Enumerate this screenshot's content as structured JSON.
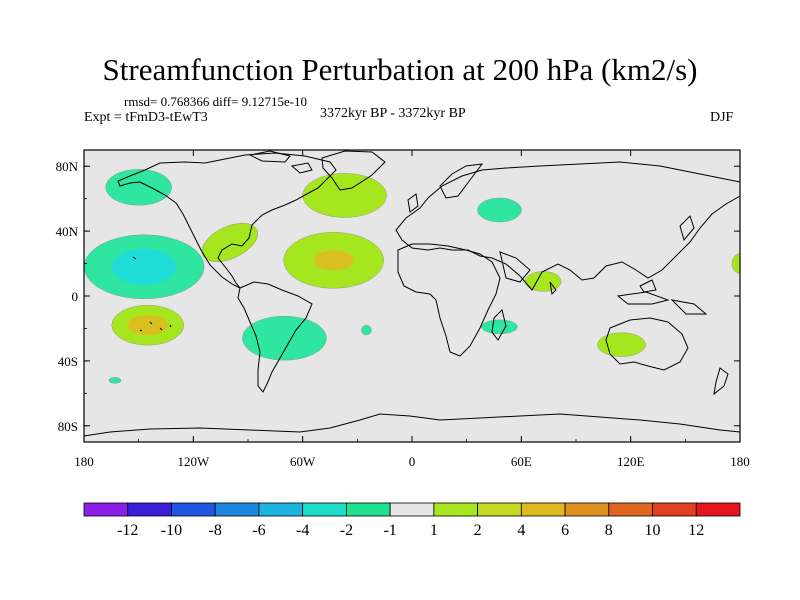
{
  "title": "Streamfunction Perturbation at 200 hPa (km2/s)",
  "stats": "rmsd= 0.768366 diff= 9.12715e-10",
  "experiment": "Expt = tFmD3-tEwT3",
  "period": "3372kyr BP - 3372kyr BP",
  "season": "DJF",
  "map": {
    "x_ticks": [
      "180",
      "120W",
      "60W",
      "0",
      "60E",
      "120E",
      "180"
    ],
    "y_ticks": [
      "80N",
      "40N",
      "0",
      "40S",
      "80S"
    ],
    "background_color": "#e6e6e6",
    "anomalies": [
      {
        "id": "n-pacific-high",
        "lon": -150,
        "lat": 67,
        "level": -2
      },
      {
        "id": "pacific-low",
        "lon": -147,
        "lat": 18,
        "level": -2,
        "core_level": -4
      },
      {
        "id": "mexico",
        "lon": -100,
        "lat": 33,
        "level": 2
      },
      {
        "id": "n-atlantic-high",
        "lon": -37,
        "lat": 62,
        "level": 2
      },
      {
        "id": "n-atlantic-mid",
        "lon": -43,
        "lat": 22,
        "level": 2,
        "core_level": 4
      },
      {
        "id": "eurasia",
        "lon": 48,
        "lat": 53,
        "level": -2
      },
      {
        "id": "arabian-sea",
        "lon": 72,
        "lat": 9,
        "level": 2
      },
      {
        "id": "s-pacific",
        "lon": -145,
        "lat": -18,
        "level": 2,
        "core_level": 4
      },
      {
        "id": "s-america",
        "lon": -70,
        "lat": -26,
        "level": -2
      },
      {
        "id": "s-atlantic-spot",
        "lon": -25,
        "lat": -21,
        "level": -2
      },
      {
        "id": "madagascar",
        "lon": 48,
        "lat": -19,
        "level": -2
      },
      {
        "id": "australia",
        "lon": 115,
        "lat": -30,
        "level": 2
      },
      {
        "id": "far-s-pacific",
        "lon": -163,
        "lat": -52,
        "level": -2
      },
      {
        "id": "dateline-east",
        "lon": 180,
        "lat": 20,
        "level": 2
      }
    ]
  },
  "colorbar": {
    "labels": [
      "-12",
      "-10",
      "-8",
      "-6",
      "-4",
      "-2",
      "-1",
      "1",
      "2",
      "4",
      "6",
      "8",
      "10",
      "12"
    ],
    "colors": [
      "#8c1fe6",
      "#3a1fd9",
      "#1f55e0",
      "#1f86e0",
      "#1fb3e0",
      "#1fdcc6",
      "#1fe08c",
      "#e6e6e6",
      "#a6e61f",
      "#c4d81f",
      "#e0b81f",
      "#e0901f",
      "#e0661f",
      "#e0401f",
      "#e6141f"
    ],
    "level_colors": {
      "-4": "#1fdcd6",
      "-2": "#2ee6a0",
      "2": "#a6e61f",
      "4": "#d9c020"
    }
  }
}
